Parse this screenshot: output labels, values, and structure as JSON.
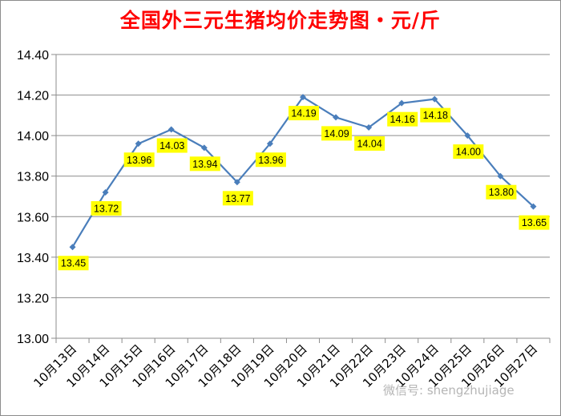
{
  "chart_data": {
    "type": "line",
    "title": "全国外三元生猪均价走势图・元/斤",
    "categories": [
      "10月13日",
      "10月14日",
      "10月15日",
      "10月16日",
      "10月17日",
      "10月18日",
      "10月19日",
      "10月20日",
      "10月21日",
      "10月22日",
      "10月23日",
      "10月24日",
      "10月25日",
      "10月26日",
      "10月27日"
    ],
    "series": [
      {
        "values": [
          13.45,
          13.72,
          13.96,
          14.03,
          13.94,
          13.77,
          13.96,
          14.19,
          14.09,
          14.04,
          14.16,
          14.18,
          14.0,
          13.8,
          13.65
        ]
      }
    ],
    "ylim": [
      13.0,
      14.4
    ],
    "yticks": [
      "13.00",
      "13.20",
      "13.40",
      "13.60",
      "13.80",
      "14.00",
      "14.20",
      "14.40"
    ],
    "data_labels": [
      "13.45",
      "13.72",
      "13.96",
      "14.03",
      "13.94",
      "13.77",
      "13.96",
      "14.19",
      "14.09",
      "14.04",
      "14.16",
      "14.18",
      "14.00",
      "13.80",
      "13.65"
    ],
    "grid": "horizontal",
    "line_color": "#4a7ebb",
    "label_bg_color": "#ffff00"
  },
  "watermark": "微信号: shengzhujiage"
}
